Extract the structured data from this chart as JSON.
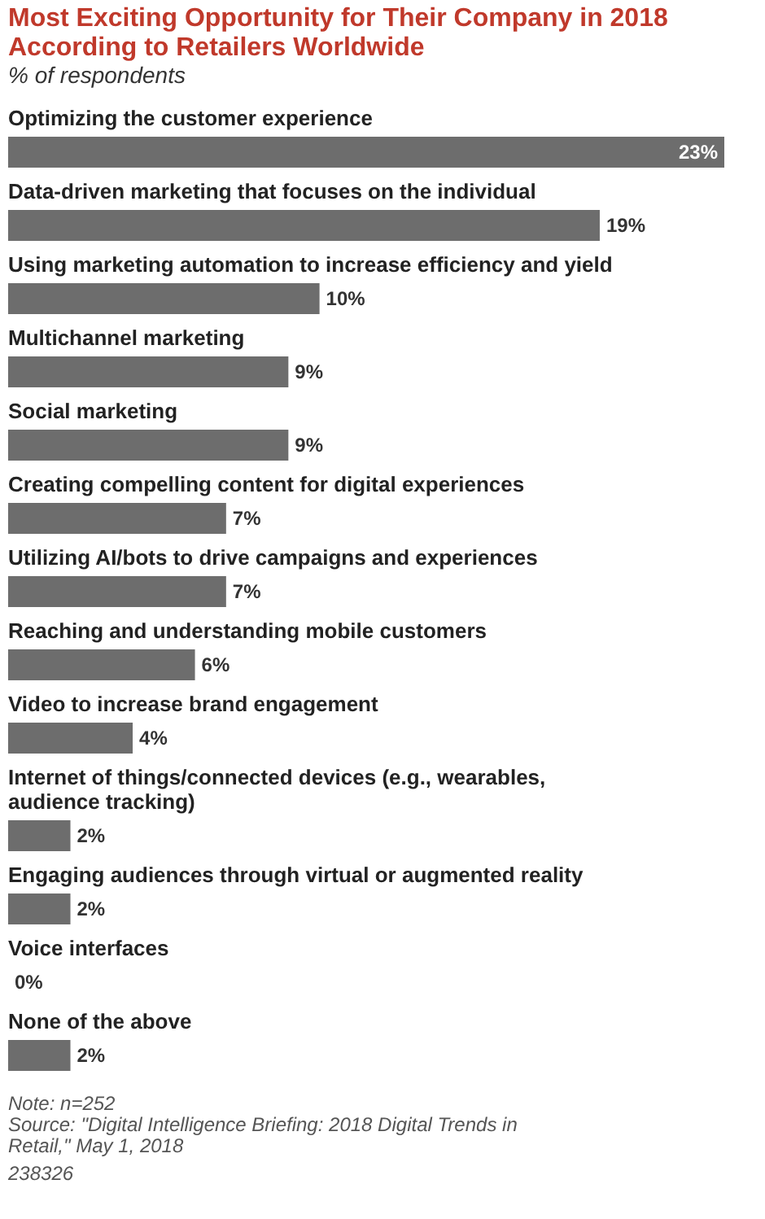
{
  "chart_data": {
    "type": "bar",
    "orientation": "horizontal",
    "title": "Most Exciting Opportunity for Their Company in 2018 According to Retailers Worldwide",
    "subtitle": "% of respondents",
    "categories": [
      "Optimizing the customer experience",
      "Data-driven marketing that focuses on the individual",
      "Using marketing automation to increase efficiency and yield",
      "Multichannel marketing",
      "Social marketing",
      "Creating compelling content for digital experiences",
      "Utilizing AI/bots to drive campaigns and experiences",
      "Reaching and understanding mobile customers",
      "Video to increase brand engagement",
      "Internet of things/connected devices (e.g., wearables, audience tracking)",
      "Engaging audiences through virtual or augmented reality",
      "Voice interfaces",
      "None of the above"
    ],
    "values": [
      23,
      19,
      10,
      9,
      9,
      7,
      7,
      6,
      4,
      2,
      2,
      0,
      2
    ],
    "value_labels": [
      "23%",
      "19%",
      "10%",
      "9%",
      "9%",
      "7%",
      "7%",
      "6%",
      "4%",
      "2%",
      "2%",
      "0%",
      "2%"
    ],
    "color": "#6d6d6d",
    "annotations": [
      "Note: n=252",
      "Source: \"Digital Intelligence Briefing: 2018 Digital Trends in Retail,\" May 1, 2018",
      "238326"
    ]
  }
}
